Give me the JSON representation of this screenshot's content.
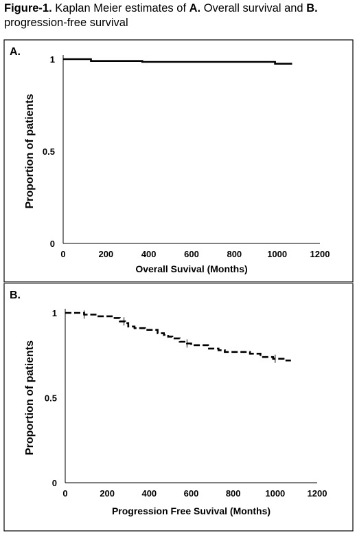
{
  "figure": {
    "label": "Figure-1.",
    "title_part1": " Kaplan Meier estimates of ",
    "a_bold": "A.",
    "title_part2": " Overall survival and ",
    "b_bold": "B.",
    "title_part3": " progression-free survival"
  },
  "chart_data": [
    {
      "type": "line",
      "panel_label": "A.",
      "xlabel": "Overall Suvival (Months)",
      "ylabel": "Proportion of patients",
      "xlim": [
        0,
        1200
      ],
      "ylim": [
        0,
        1
      ],
      "xticks": [
        "0",
        "200",
        "400",
        "600",
        "800",
        "1000",
        "1200"
      ],
      "yticks": [
        "0",
        "0.5",
        "1"
      ],
      "line_style": "solid",
      "series": [
        {
          "x": [
            0,
            130,
            130,
            370,
            370,
            990,
            990,
            1070
          ],
          "y": [
            1.0,
            1.0,
            0.99,
            0.99,
            0.985,
            0.985,
            0.975,
            0.975
          ]
        }
      ]
    },
    {
      "type": "line",
      "panel_label": "B.",
      "xlabel": "Progression Free Suvival (Months)",
      "ylabel": "Proportion of patients",
      "xlim": [
        0,
        1200
      ],
      "ylim": [
        0,
        1
      ],
      "xticks": [
        "0",
        "200",
        "400",
        "600",
        "800",
        "1000",
        "1200"
      ],
      "yticks": [
        "0",
        "0.5",
        "1"
      ],
      "line_style": "dashed",
      "series": [
        {
          "x": [
            0,
            90,
            90,
            150,
            150,
            230,
            230,
            260,
            260,
            285,
            285,
            300,
            300,
            330,
            330,
            380,
            380,
            440,
            440,
            470,
            470,
            490,
            490,
            510,
            510,
            545,
            545,
            580,
            580,
            600,
            600,
            680,
            680,
            730,
            730,
            760,
            760,
            880,
            880,
            930,
            930,
            990,
            990,
            1040,
            1040,
            1075
          ],
          "y": [
            1.0,
            1.0,
            0.99,
            0.99,
            0.98,
            0.98,
            0.97,
            0.97,
            0.95,
            0.95,
            0.94,
            0.94,
            0.92,
            0.92,
            0.91,
            0.91,
            0.9,
            0.9,
            0.88,
            0.88,
            0.87,
            0.87,
            0.86,
            0.86,
            0.85,
            0.85,
            0.83,
            0.83,
            0.82,
            0.82,
            0.81,
            0.81,
            0.79,
            0.79,
            0.78,
            0.78,
            0.77,
            0.77,
            0.76,
            0.76,
            0.74,
            0.74,
            0.73,
            0.73,
            0.72,
            0.72
          ]
        }
      ],
      "censor_x": [
        90,
        280,
        580,
        1000
      ]
    }
  ]
}
